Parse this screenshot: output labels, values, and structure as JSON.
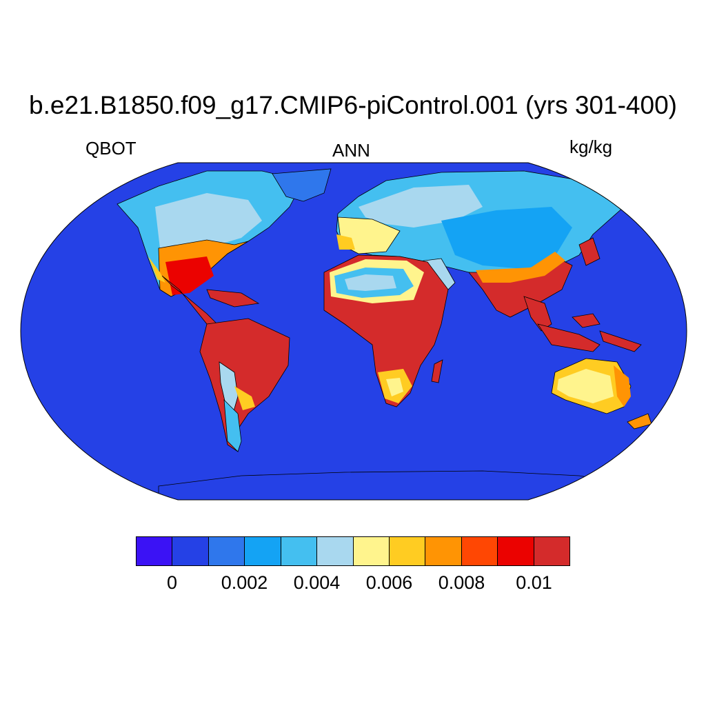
{
  "title": "b.e21.B1850.f09_g17.CMIP6-piControl.001 (yrs 301-400)",
  "subtitle_left": "QBOT",
  "subtitle_center": "ANN",
  "subtitle_right": "kg/kg",
  "map": {
    "projection": "Robinson",
    "variable": "QBOT",
    "ocean_color": "#2541e6",
    "coastline_color": "#000000"
  },
  "colorbar": {
    "colors": [
      "#3b12f5",
      "#2541e6",
      "#2f77ec",
      "#14a3f4",
      "#44bff0",
      "#a9d8ef",
      "#fff48d",
      "#ffcc22",
      "#ff9404",
      "#ff4703",
      "#eb0200",
      "#d42b2b"
    ],
    "tick_labels": [
      "0",
      "0.002",
      "0.004",
      "0.006",
      "0.008",
      "0.01"
    ]
  }
}
